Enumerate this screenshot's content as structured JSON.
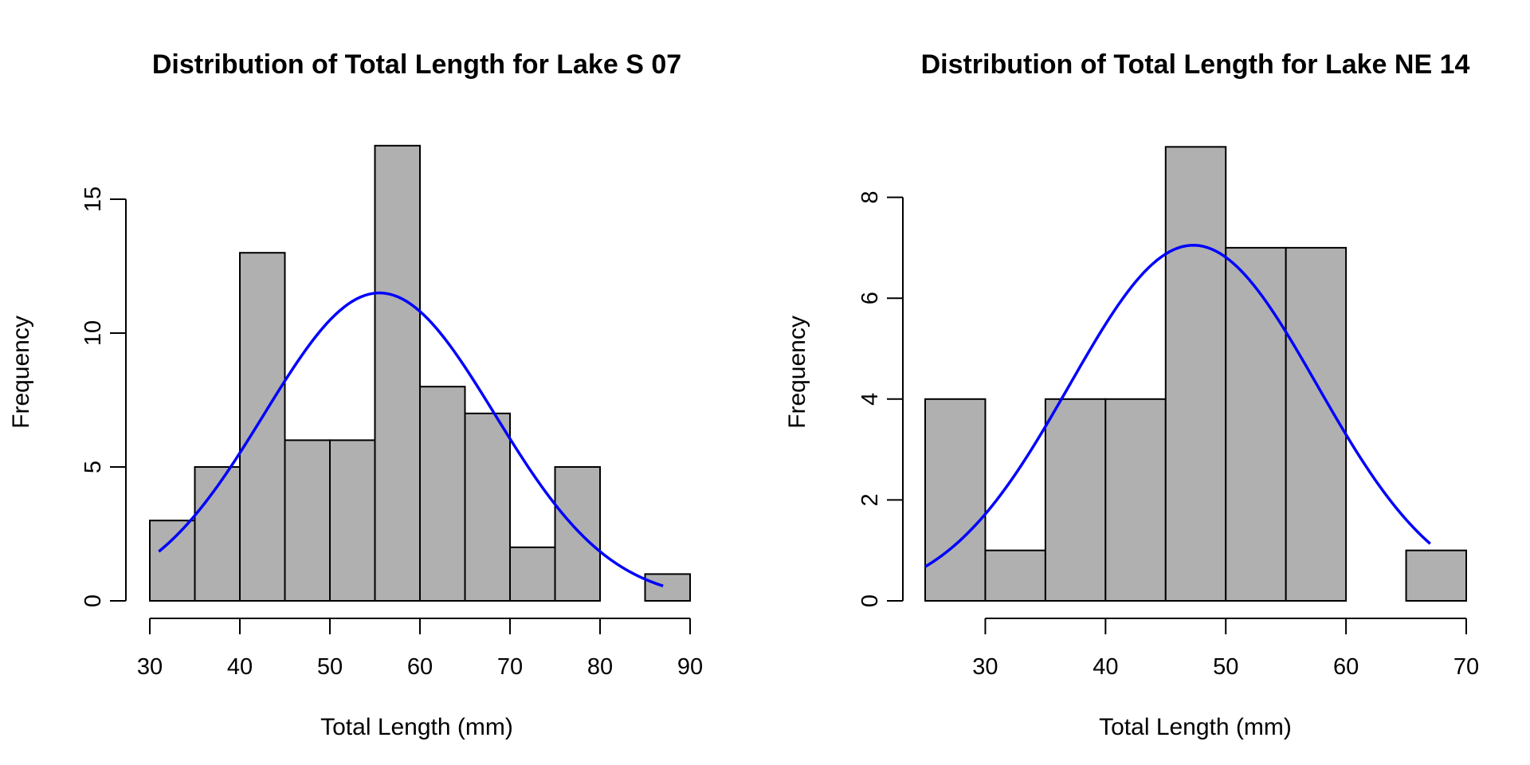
{
  "colors": {
    "bar_fill": "#b0b0b0",
    "bar_stroke": "#000000",
    "curve": "#0000ff"
  },
  "chart_data": [
    {
      "type": "bar",
      "subtype": "histogram",
      "title": "Distribution of Total Length for Lake S 07",
      "xlabel": "Total Length (mm)",
      "ylabel": "Frequency",
      "bin_edges": [
        30,
        35,
        40,
        45,
        50,
        55,
        60,
        65,
        70,
        75,
        80,
        85,
        90
      ],
      "values": [
        3,
        5,
        13,
        6,
        6,
        17,
        8,
        7,
        2,
        5,
        0,
        1
      ],
      "xlim": [
        30,
        90
      ],
      "ylim": [
        0,
        17
      ],
      "x_ticks": [
        30,
        40,
        50,
        60,
        70,
        80,
        90
      ],
      "y_ticks": [
        0,
        5,
        10,
        15
      ],
      "normal_curve": {
        "mean": 55.5,
        "sd": 12.8,
        "peak": 11.5,
        "x_range": [
          31,
          87
        ]
      }
    },
    {
      "type": "bar",
      "subtype": "histogram",
      "title": "Distribution of Total Length for Lake NE 14",
      "xlabel": "Total Length (mm)",
      "ylabel": "Frequency",
      "bin_edges": [
        25,
        30,
        35,
        40,
        45,
        50,
        55,
        60,
        65,
        70
      ],
      "values": [
        4,
        1,
        4,
        4,
        9,
        7,
        7,
        0,
        1
      ],
      "xlim": [
        25,
        70
      ],
      "ylim": [
        0,
        9
      ],
      "x_ticks": [
        30,
        40,
        50,
        60,
        70
      ],
      "y_ticks": [
        0,
        2,
        4,
        6,
        8
      ],
      "normal_curve": {
        "mean": 47.3,
        "sd": 10.3,
        "peak": 7.05,
        "x_range": [
          25,
          67
        ]
      }
    }
  ]
}
